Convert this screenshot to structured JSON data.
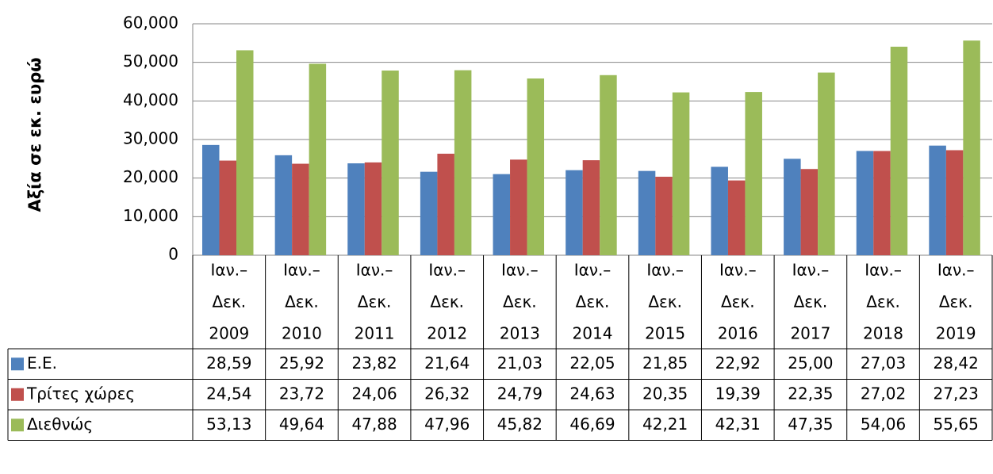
{
  "chart_data": {
    "type": "bar",
    "y_axis_label": "Αξία σε  εκ. ευρώ",
    "categories": [
      [
        "Ιαν.–",
        "Δεκ.",
        "2009"
      ],
      [
        "Ιαν.–",
        "Δεκ.",
        "2010"
      ],
      [
        "Ιαν.–",
        "Δεκ.",
        "2011"
      ],
      [
        "Ιαν.–",
        "Δεκ.",
        "2012"
      ],
      [
        "Ιαν.–",
        "Δεκ.",
        "2013"
      ],
      [
        "Ιαν.–",
        "Δεκ.",
        "2014"
      ],
      [
        "Ιαν.–",
        "Δεκ.",
        "2015"
      ],
      [
        "Ιαν.–",
        "Δεκ.",
        "2016"
      ],
      [
        "Ιαν.–",
        "Δεκ.",
        "2017"
      ],
      [
        "Ιαν.–",
        "Δεκ.",
        "2018"
      ],
      [
        "Ιαν.–",
        "Δεκ.",
        "2019"
      ]
    ],
    "series": [
      {
        "name": "Ε.Ε.",
        "color": "#4f81bd",
        "values": [
          28590,
          25920,
          23820,
          21640,
          21030,
          22050,
          21850,
          22920,
          25000,
          27030,
          28420
        ],
        "value_labels": [
          "28,59",
          "25,92",
          "23,82",
          "21,64",
          "21,03",
          "22,05",
          "21,85",
          "22,92",
          "25,00",
          "27,03",
          "28,42"
        ]
      },
      {
        "name": "Τρίτες χώρες",
        "color": "#c0504d",
        "values": [
          24540,
          23720,
          24060,
          26320,
          24790,
          24630,
          20350,
          19390,
          22350,
          27020,
          27230
        ],
        "value_labels": [
          "24,54",
          "23,72",
          "24,06",
          "26,32",
          "24,79",
          "24,63",
          "20,35",
          "19,39",
          "22,35",
          "27,02",
          "27,23"
        ]
      },
      {
        "name": "Διεθνώς",
        "color": "#9bbb59",
        "values": [
          53130,
          49640,
          47880,
          47960,
          45820,
          46690,
          42210,
          42310,
          47350,
          54060,
          55650
        ],
        "value_labels": [
          "53,13",
          "49,64",
          "47,88",
          "47,96",
          "45,82",
          "46,69",
          "42,21",
          "42,31",
          "47,35",
          "54,06",
          "55,65"
        ]
      }
    ],
    "ylim": [
      0,
      60000
    ],
    "yticks": [
      0,
      {
        "value": 10000,
        "label": "10,000"
      },
      {
        "value": 20000,
        "label": "20,000"
      },
      {
        "value": 30000,
        "label": "30,000"
      },
      {
        "value": 40000,
        "label": "40,000"
      },
      {
        "value": 50000,
        "label": "50,000"
      },
      {
        "value": 60000,
        "label": "60,000"
      }
    ],
    "grid": true
  }
}
